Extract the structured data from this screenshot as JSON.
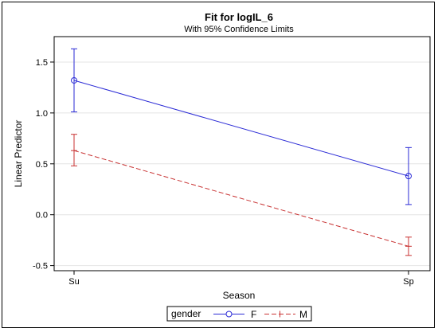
{
  "chart_data": {
    "type": "line",
    "title": "Fit for logIL_6",
    "subtitle": "With 95% Confidence Limits",
    "xlabel": "Season",
    "ylabel": "Linear Predictor",
    "categories": [
      "Su",
      "Sp"
    ],
    "ylim": [
      -0.55,
      1.75
    ],
    "yticks": [
      -0.5,
      0.0,
      0.5,
      1.0,
      1.5
    ],
    "ytick_labels": [
      "-0.5",
      "0.0",
      "0.5",
      "1.0",
      "1.5"
    ],
    "grid": true,
    "legend_title": "gender",
    "legend_position": "bottom",
    "series": [
      {
        "name": "F",
        "color": "#2a2ad6",
        "line_style": "solid",
        "marker": "circle",
        "values": [
          1.32,
          0.38
        ],
        "lower": [
          1.01,
          0.1
        ],
        "upper": [
          1.63,
          0.66
        ]
      },
      {
        "name": "M",
        "color": "#c83232",
        "line_style": "dashed",
        "marker": "plus",
        "values": [
          0.63,
          -0.31
        ],
        "lower": [
          0.48,
          -0.4
        ],
        "upper": [
          0.79,
          -0.22
        ]
      }
    ]
  }
}
